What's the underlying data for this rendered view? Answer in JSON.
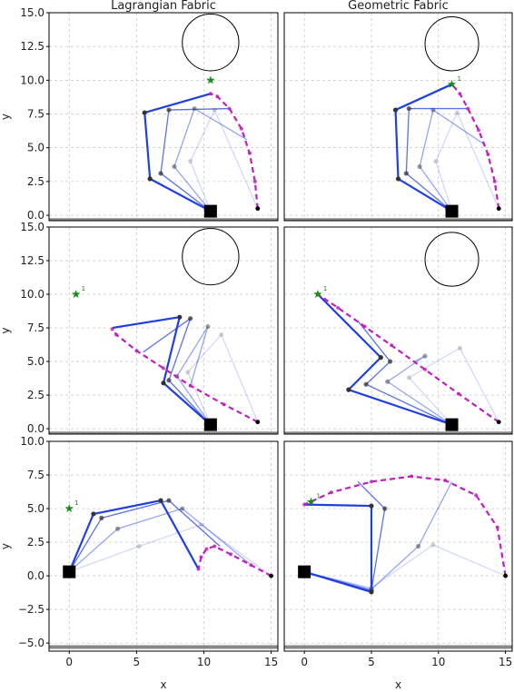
{
  "chart_data": {
    "type": "line",
    "columns": [
      "Lagrangian Fabric",
      "Geometric Fabric"
    ],
    "panels": [
      {
        "row": 0,
        "col": 0,
        "xlim": [
          -1.5,
          15.5
        ],
        "ylim": [
          -0.4,
          15
        ],
        "yticks": [
          "0.0",
          "2.5",
          "5.0",
          "7.5",
          "10.0",
          "12.5",
          "15.0"
        ],
        "ylabel": "y",
        "floor_y": -0.35,
        "obstacle": {
          "cx": 10.5,
          "cy": 12.8,
          "r": 2.1
        },
        "goal": {
          "x": 10.5,
          "y": 10.0,
          "label": ""
        },
        "base": {
          "x": 10.5,
          "y": 0.3
        },
        "trajectory": [
          [
            14,
            0.5
          ],
          [
            13.8,
            2.5
          ],
          [
            13.4,
            4.6
          ],
          [
            12.8,
            6.4
          ],
          [
            11.9,
            7.9
          ],
          [
            11,
            8.8
          ],
          [
            10.5,
            9.0
          ]
        ],
        "arm_snapshots": [
          [
            [
              10.5,
              0.3
            ],
            [
              6,
              2.7
            ],
            [
              5.6,
              7.6
            ],
            [
              10.5,
              9.0
            ]
          ],
          [
            [
              10.5,
              0.3
            ],
            [
              6.8,
              3.1
            ],
            [
              7.4,
              7.8
            ],
            [
              11.9,
              7.9
            ]
          ],
          [
            [
              10.5,
              0.3
            ],
            [
              7.8,
              3.6
            ],
            [
              9.3,
              7.9
            ],
            [
              13.2,
              5.6
            ]
          ],
          [
            [
              10.5,
              0.3
            ],
            [
              9.0,
              4.0
            ],
            [
              10.8,
              7.8
            ],
            [
              14,
              0.5
            ]
          ]
        ]
      },
      {
        "row": 0,
        "col": 1,
        "xlim": [
          -1.5,
          15.5
        ],
        "ylim": [
          -0.4,
          15
        ],
        "yticks": [],
        "ylabel": "",
        "floor_y": -0.35,
        "obstacle": {
          "cx": 11.0,
          "cy": 12.7,
          "r": 2.0
        },
        "goal": {
          "x": 11.0,
          "y": 9.7,
          "label": "1"
        },
        "base": {
          "x": 11,
          "y": 0.3
        },
        "trajectory": [
          [
            14.5,
            0.5
          ],
          [
            14.2,
            2.5
          ],
          [
            13.7,
            4.5
          ],
          [
            13.0,
            6.3
          ],
          [
            12.2,
            7.9
          ],
          [
            11.6,
            9.0
          ],
          [
            11.0,
            9.7
          ]
        ],
        "arm_snapshots": [
          [
            [
              11,
              0.3
            ],
            [
              7.0,
              2.7
            ],
            [
              6.8,
              7.8
            ],
            [
              11.0,
              9.7
            ]
          ],
          [
            [
              11,
              0.3
            ],
            [
              7.6,
              3.1
            ],
            [
              7.8,
              7.9
            ],
            [
              12.3,
              7.9
            ]
          ],
          [
            [
              11,
              0.3
            ],
            [
              8.6,
              3.6
            ],
            [
              9.6,
              7.8
            ],
            [
              13.5,
              5.2
            ]
          ],
          [
            [
              11,
              0.3
            ],
            [
              9.8,
              4.0
            ],
            [
              11.4,
              7.6
            ],
            [
              14.5,
              0.5
            ]
          ]
        ]
      },
      {
        "row": 1,
        "col": 0,
        "xlim": [
          -1.5,
          15.5
        ],
        "ylim": [
          -0.4,
          15
        ],
        "yticks": [
          "0.0",
          "2.5",
          "5.0",
          "7.5",
          "10.0",
          "12.5",
          "15.0"
        ],
        "ylabel": "y",
        "floor_y": -0.35,
        "obstacle": {
          "cx": 10.5,
          "cy": 12.8,
          "r": 2.1
        },
        "goal": {
          "x": 0.5,
          "y": 10.0,
          "label": "1"
        },
        "base": {
          "x": 10.5,
          "y": 0.3
        },
        "trajectory": [
          [
            14,
            0.5
          ],
          [
            11.5,
            1.8
          ],
          [
            9,
            3.2
          ],
          [
            7,
            4.5
          ],
          [
            5,
            5.8
          ],
          [
            3.5,
            7.0
          ],
          [
            3.2,
            7.4
          ]
        ],
        "arm_snapshots": [
          [
            [
              10.5,
              0.3
            ],
            [
              7.0,
              3.4
            ],
            [
              8.2,
              8.3
            ],
            [
              3.2,
              7.5
            ]
          ],
          [
            [
              10.5,
              0.3
            ],
            [
              7.4,
              3.6
            ],
            [
              9.0,
              8.2
            ],
            [
              5.5,
              5.7
            ]
          ],
          [
            [
              10.5,
              0.3
            ],
            [
              8.0,
              3.9
            ],
            [
              10.3,
              7.6
            ],
            [
              9.0,
              3.2
            ]
          ],
          [
            [
              10.5,
              0.3
            ],
            [
              8.8,
              4.2
            ],
            [
              11.3,
              7.0
            ],
            [
              14,
              0.5
            ]
          ]
        ]
      },
      {
        "row": 1,
        "col": 1,
        "xlim": [
          -1.5,
          15.5
        ],
        "ylim": [
          -0.4,
          15
        ],
        "yticks": [],
        "ylabel": "",
        "floor_y": -0.35,
        "obstacle": {
          "cx": 11.0,
          "cy": 12.6,
          "r": 2.0
        },
        "goal": {
          "x": 1.0,
          "y": 10.0,
          "label": "1"
        },
        "base": {
          "x": 11,
          "y": 0.3
        },
        "trajectory": [
          [
            14.5,
            0.5
          ],
          [
            11.5,
            2.6
          ],
          [
            9,
            4.4
          ],
          [
            6.5,
            6.2
          ],
          [
            4.5,
            7.6
          ],
          [
            2.5,
            9.0
          ],
          [
            1.0,
            10.0
          ]
        ],
        "arm_snapshots": [
          [
            [
              11,
              0.3
            ],
            [
              3.3,
              2.9
            ],
            [
              5.7,
              5.3
            ],
            [
              1.0,
              10.0
            ]
          ],
          [
            [
              11,
              0.3
            ],
            [
              4.6,
              3.3
            ],
            [
              6.4,
              5.0
            ],
            [
              4.0,
              8.0
            ]
          ],
          [
            [
              11,
              0.3
            ],
            [
              6.2,
              3.5
            ],
            [
              9.0,
              5.4
            ],
            [
              8.2,
              5.0
            ]
          ],
          [
            [
              11,
              0.3
            ],
            [
              7.8,
              3.8
            ],
            [
              11.6,
              6.0
            ],
            [
              14.5,
              0.5
            ]
          ]
        ]
      },
      {
        "row": 2,
        "col": 0,
        "xlim": [
          -1.5,
          15.5
        ],
        "ylim": [
          -5.6,
          10
        ],
        "yticks": [
          "−5.0",
          "−2.5",
          "0.0",
          "2.5",
          "5.0",
          "7.5",
          "10.0"
        ],
        "ylabel": "y",
        "xticks": [
          "0",
          "5",
          "10",
          "15"
        ],
        "xlabel": "x",
        "floor_y": -5.3,
        "obstacle": null,
        "goal": {
          "x": 0,
          "y": 5.0,
          "label": "1"
        },
        "base": {
          "x": 0,
          "y": 0.3
        },
        "trajectory": [
          [
            15,
            0
          ],
          [
            13.5,
            0.8
          ],
          [
            12,
            1.6
          ],
          [
            10.8,
            2.2
          ],
          [
            10.2,
            2.0
          ],
          [
            9.8,
            1.4
          ],
          [
            9.6,
            0.5
          ]
        ],
        "arm_snapshots": [
          [
            [
              0,
              0.3
            ],
            [
              1.8,
              4.6
            ],
            [
              6.8,
              5.6
            ],
            [
              9.6,
              0.5
            ]
          ],
          [
            [
              0,
              0.3
            ],
            [
              2.4,
              4.3
            ],
            [
              7.4,
              5.6
            ],
            [
              11.2,
              2.2
            ]
          ],
          [
            [
              0,
              0.3
            ],
            [
              3.6,
              3.5
            ],
            [
              8.4,
              5.0
            ],
            [
              13.4,
              0.9
            ]
          ],
          [
            [
              0,
              0.3
            ],
            [
              5.2,
              2.2
            ],
            [
              9.8,
              3.8
            ],
            [
              15,
              0
            ]
          ]
        ]
      },
      {
        "row": 2,
        "col": 1,
        "xlim": [
          -1.5,
          15.5
        ],
        "ylim": [
          -5.6,
          10
        ],
        "yticks": [],
        "ylabel": "",
        "xticks": [
          "0",
          "5",
          "10",
          "15"
        ],
        "xlabel": "x",
        "floor_y": -5.3,
        "obstacle": null,
        "goal": {
          "x": 0.5,
          "y": 5.5,
          "label": "1"
        },
        "base": {
          "x": 0,
          "y": 0.3
        },
        "trajectory": [
          [
            15,
            0
          ],
          [
            14.4,
            3.6
          ],
          [
            12.8,
            6.0
          ],
          [
            10.5,
            7.1
          ],
          [
            8.0,
            7.4
          ],
          [
            5.0,
            7.0
          ],
          [
            2.0,
            6.2
          ],
          [
            0,
            5.3
          ]
        ],
        "arm_snapshots": [
          [
            [
              0,
              0.3
            ],
            [
              5.0,
              -1.2
            ],
            [
              5.0,
              5.2
            ],
            [
              0,
              5.3
            ]
          ],
          [
            [
              0,
              0.3
            ],
            [
              5.0,
              -1.1
            ],
            [
              6.0,
              5.0
            ],
            [
              4.0,
              7.0
            ]
          ],
          [
            [
              0,
              0.3
            ],
            [
              5.0,
              -1.0
            ],
            [
              8.5,
              2.2
            ],
            [
              11.0,
              7.0
            ]
          ],
          [
            [
              0,
              0.3
            ],
            [
              5.0,
              -0.9
            ],
            [
              9.6,
              2.3
            ],
            [
              15,
              0
            ]
          ]
        ]
      }
    ]
  }
}
